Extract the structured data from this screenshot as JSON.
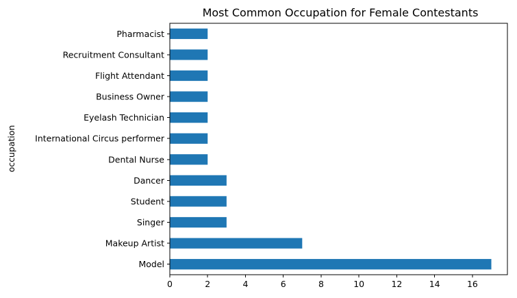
{
  "chart_data": {
    "type": "bar",
    "orientation": "horizontal",
    "title": "Most Common Occupation for Female Contestants",
    "xlabel": "",
    "ylabel": "occupation",
    "categories": [
      "Model",
      "Makeup Artist",
      "Singer",
      "Student",
      "Dancer",
      "Dental Nurse",
      "International Circus performer",
      "Eyelash Technician",
      "Business Owner",
      "Flight Attendant",
      "Recruitment Consultant",
      "Pharmacist"
    ],
    "values": [
      17,
      7,
      3,
      3,
      3,
      2,
      2,
      2,
      2,
      2,
      2,
      2
    ],
    "xlim": [
      0,
      17.85
    ],
    "xticks": [
      0,
      2,
      4,
      6,
      8,
      10,
      12,
      14,
      16
    ],
    "bar_color": "#1f77b4",
    "grid": false,
    "legend": "none"
  }
}
